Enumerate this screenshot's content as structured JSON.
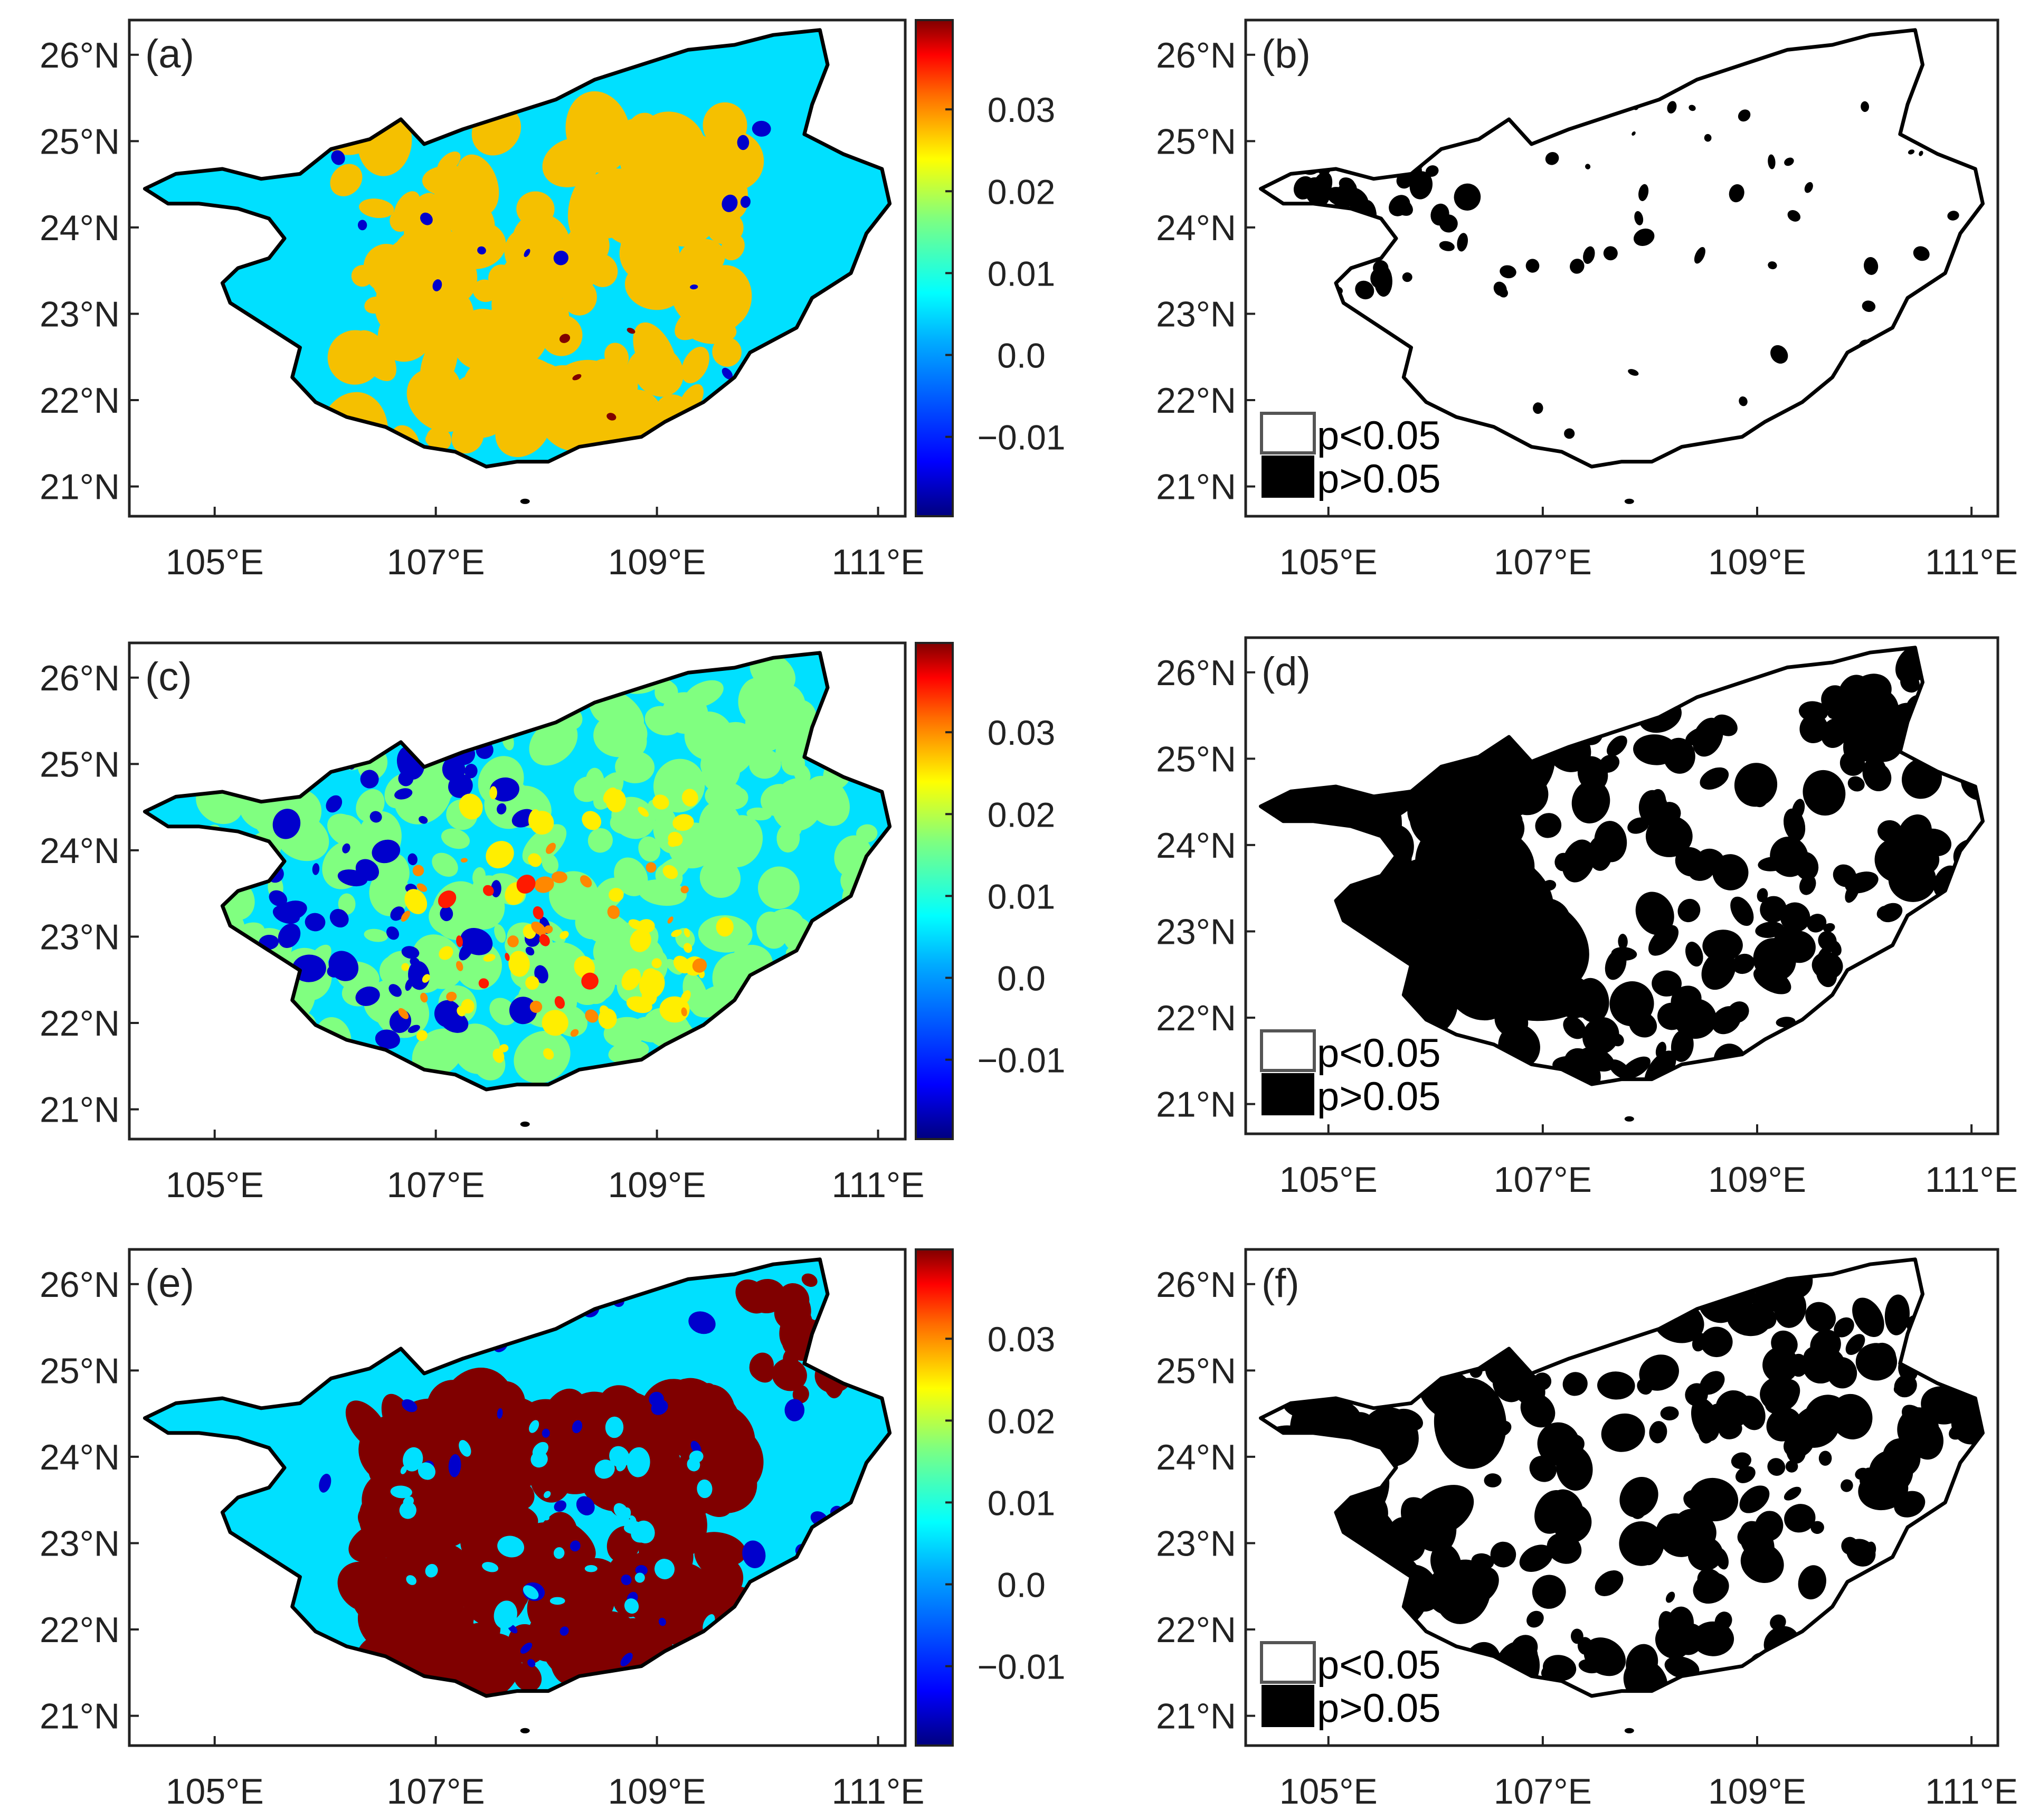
{
  "figure": {
    "lat_ticks": [
      "26°N",
      "25°N",
      "24°N",
      "23°N",
      "22°N",
      "21°N"
    ],
    "lon_ticks": [
      "105°E",
      "107°E",
      "109°E",
      "111°E"
    ],
    "colorbar": {
      "ticks": [
        "0.03",
        "0.02",
        "0.01",
        "0.0",
        "−0.01"
      ],
      "colors": [
        "#00007f",
        "#0000ff",
        "#0080ff",
        "#00e5ff",
        "#7fff7f",
        "#ffff00",
        "#ff8000",
        "#ff0000",
        "#7f0000"
      ]
    },
    "legend": {
      "low": "p<0.05",
      "high": "p>0.05"
    },
    "colors": {
      "cyan": "#00e0ff",
      "blue": "#0000cc",
      "navy": "#000080",
      "gold": "#f5c000",
      "green": "#80ff80",
      "yellow": "#ffee00",
      "orange": "#ff8800",
      "red": "#ff1a00",
      "maroon": "#800000",
      "black": "#000000"
    },
    "panels": [
      {
        "label": "(a)",
        "kind": "trend"
      },
      {
        "label": "(b)",
        "kind": "significance"
      },
      {
        "label": "(c)",
        "kind": "trend"
      },
      {
        "label": "(d)",
        "kind": "significance"
      },
      {
        "label": "(e)",
        "kind": "trend"
      },
      {
        "label": "(f)",
        "kind": "significance"
      }
    ]
  }
}
